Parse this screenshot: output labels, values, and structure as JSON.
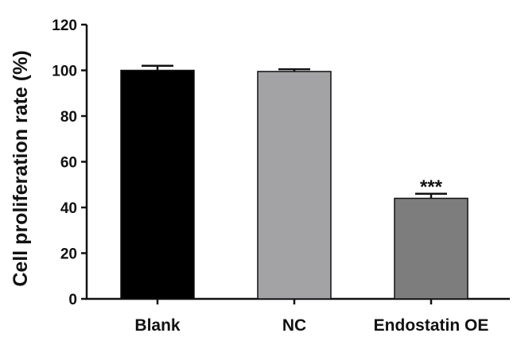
{
  "chart_data": {
    "type": "bar",
    "title": "",
    "xlabel": "",
    "ylabel": "Cell proliferation rate (%)",
    "ylim": [
      0,
      120
    ],
    "yticks": [
      0,
      20,
      40,
      60,
      80,
      100,
      120
    ],
    "categories": [
      "Blank",
      "NC",
      "Endostatin OE"
    ],
    "values": [
      100,
      99.5,
      44
    ],
    "errors": [
      2,
      1,
      2
    ],
    "colors": [
      "#000000",
      "#a3a3a6",
      "#7d7d7d"
    ],
    "annotations": [
      "",
      "",
      "***"
    ],
    "grid": false,
    "legend": "none"
  }
}
